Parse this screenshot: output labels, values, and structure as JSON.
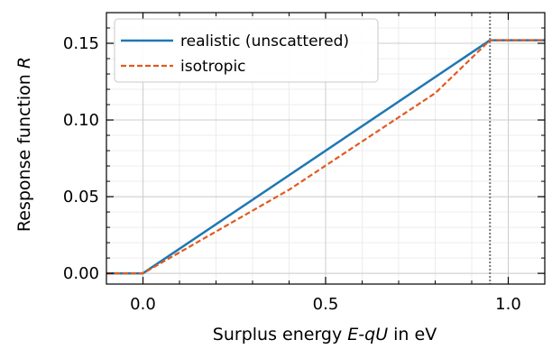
{
  "chart_data": {
    "type": "line",
    "xlabel": {
      "prefix": "Surplus energy ",
      "math": "E-qU",
      "suffix": " in eV"
    },
    "ylabel": {
      "prefix": "Response function ",
      "math": "R"
    },
    "xlim": [
      -0.1,
      1.1
    ],
    "ylim": [
      -0.007,
      0.17
    ],
    "x_ticks": [
      0.0,
      0.5,
      1.0
    ],
    "x_tick_labels": [
      "0.0",
      "0.5",
      "1.0"
    ],
    "y_ticks": [
      0.0,
      0.05,
      0.1,
      0.15
    ],
    "y_tick_labels": [
      "0.00",
      "0.05",
      "0.10",
      "0.15"
    ],
    "grid": true,
    "legend_position": "top-left",
    "vertical_marker": {
      "x": 0.95,
      "color": "#777777",
      "style": "dotted"
    },
    "series": [
      {
        "name": "realistic (unscattered)",
        "color": "#1f77b4",
        "style": "solid",
        "x": [
          -0.1,
          0.0,
          0.95,
          1.1
        ],
        "y": [
          0.0,
          0.0,
          0.152,
          0.152
        ]
      },
      {
        "name": "isotropic",
        "color": "#e05b1f",
        "style": "dashed",
        "x": [
          -0.1,
          0.0,
          0.4,
          0.8,
          0.95,
          1.1
        ],
        "y": [
          0.0,
          0.0,
          0.0545,
          0.1175,
          0.152,
          0.152
        ]
      }
    ]
  }
}
